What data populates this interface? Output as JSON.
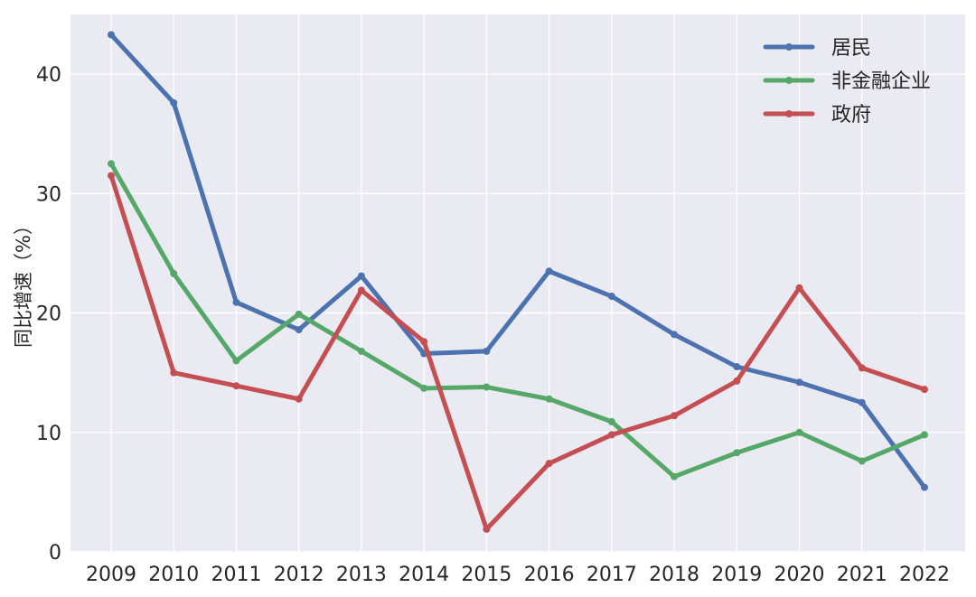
{
  "chart_data": {
    "type": "line",
    "title": "",
    "xlabel": "",
    "ylabel": "同比增速（%）",
    "ylim": [
      0,
      45
    ],
    "yticks": [
      0,
      10,
      20,
      30,
      40
    ],
    "grid": true,
    "legend_position": "top-right",
    "categories": [
      "2009",
      "2010",
      "2011",
      "2012",
      "2013",
      "2014",
      "2015",
      "2016",
      "2017",
      "2018",
      "2019",
      "2020",
      "2021",
      "2022"
    ],
    "series": [
      {
        "name": "居民",
        "color": "#4C72B0",
        "values": [
          43.3,
          37.6,
          20.9,
          18.6,
          23.1,
          16.6,
          16.8,
          23.5,
          21.4,
          18.2,
          15.5,
          14.2,
          12.5,
          5.4
        ]
      },
      {
        "name": "非金融企业",
        "color": "#55A868",
        "values": [
          32.5,
          23.3,
          16.0,
          19.9,
          16.8,
          13.7,
          13.8,
          12.8,
          10.9,
          6.3,
          8.3,
          10.0,
          7.6,
          9.8
        ]
      },
      {
        "name": "政府",
        "color": "#C44E52",
        "values": [
          31.5,
          15.0,
          13.9,
          12.8,
          21.9,
          17.6,
          1.9,
          7.4,
          9.8,
          11.4,
          14.3,
          22.1,
          15.4,
          13.6
        ]
      }
    ]
  }
}
